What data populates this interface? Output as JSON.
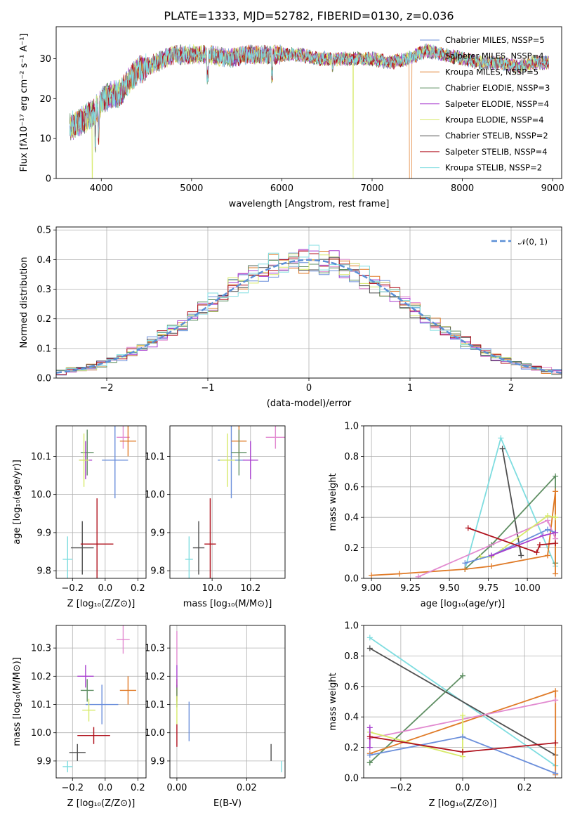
{
  "colors": {
    "Chabrier MILES": "#6b8fdb",
    "Salpeter MILES": "#e28ad0",
    "Kroupa MILES": "#e07b28",
    "Chabrier ELODIE": "#5f8f63",
    "Salpeter ELODIE": "#a83fcf",
    "Kroupa ELODIE": "#d7ea6a",
    "Chabrier STELIB": "#505050",
    "Salpeter STELIB": "#b0121d",
    "Kroupa STELIB": "#7fdde0"
  },
  "chart_data": [
    {
      "type": "line",
      "title": "PLATE=1333, MJD=52782, FIBERID=0130, z=0.036",
      "xlabel": "wavelength [Angstrom, rest frame]",
      "ylabel": "Flux [fλ10⁻¹⁷ erg cm⁻² s⁻¹ A⁻¹]",
      "xlim": [
        3500,
        9100
      ],
      "ylim": [
        0,
        38
      ],
      "xticks": [
        "4000",
        "5000",
        "6000",
        "7000",
        "8000",
        "9000"
      ],
      "yticks": [
        "0",
        "10",
        "20",
        "30"
      ],
      "legend_position": "top-right",
      "series": [
        {
          "name": "Chabrier MILES, NSSP=5",
          "color_key": "Chabrier MILES"
        },
        {
          "name": "Salpeter MILES, NSSP=4",
          "color_key": "Salpeter MILES"
        },
        {
          "name": "Kroupa MILES, NSSP=5",
          "color_key": "Kroupa MILES"
        },
        {
          "name": "Chabrier ELODIE, NSSP=3",
          "color_key": "Chabrier ELODIE"
        },
        {
          "name": "Salpeter ELODIE, NSSP=4",
          "color_key": "Salpeter ELODIE"
        },
        {
          "name": "Kroupa ELODIE, NSSP=4",
          "color_key": "Kroupa ELODIE"
        },
        {
          "name": "Chabrier STELIB, NSSP=2",
          "color_key": "Chabrier STELIB"
        },
        {
          "name": "Salpeter STELIB, NSSP=4",
          "color_key": "Salpeter STELIB"
        },
        {
          "name": "Kroupa STELIB, NSSP=2",
          "color_key": "Kroupa STELIB"
        }
      ],
      "continuum": {
        "x": [
          3650,
          3750,
          3900,
          4000,
          4100,
          4200,
          4300,
          4400,
          4600,
          4800,
          5000,
          5200,
          5400,
          5600,
          5800,
          6000,
          6200,
          6400,
          6600,
          6800,
          7000,
          7200,
          7400,
          7600,
          7800,
          8000,
          8200,
          8400,
          8600,
          8800,
          8950
        ],
        "y": [
          13,
          14,
          16,
          19,
          21,
          21,
          24,
          27,
          29,
          31,
          31,
          31,
          30,
          31,
          31,
          31,
          31,
          30,
          30,
          30,
          30,
          29,
          30,
          32,
          31,
          30,
          29,
          29,
          28,
          29,
          29
        ]
      }
    },
    {
      "type": "step",
      "xlabel": "(data-model)/error",
      "ylabel": "Normed distribution",
      "xlim": [
        -2.5,
        2.5
      ],
      "ylim": [
        0,
        0.51
      ],
      "xticks": [
        "−2",
        "−1",
        "0",
        "1",
        "2"
      ],
      "yticks": [
        "0.0",
        "0.1",
        "0.2",
        "0.3",
        "0.4",
        "0.5"
      ],
      "bin_width": 0.1,
      "legend_position": "top-right",
      "reference": {
        "name": "𝒩(0, 1)",
        "color": "#5b8fd6"
      }
    },
    {
      "type": "errorbar",
      "xlabel": "Z [log₁₀(Z/Z⊙)]",
      "ylabel": "age  [log₁₀(age/yr)]",
      "xlim": [
        -0.3,
        0.25
      ],
      "ylim": [
        9.78,
        10.18
      ],
      "xticks": [
        "−0.2",
        "0.0",
        "0.2"
      ],
      "xtick_values": [
        -0.2,
        0.0,
        0.2
      ],
      "yticks": [
        "9.8",
        "9.9",
        "10.0",
        "10.1"
      ],
      "ytick_values": [
        9.8,
        9.9,
        10.0,
        10.1
      ],
      "points": [
        {
          "k": "Chabrier MILES",
          "x": 0.06,
          "y": 10.09,
          "xe": 0.08,
          "ye": 0.1
        },
        {
          "k": "Salpeter MILES",
          "x": 0.11,
          "y": 10.15,
          "xe": 0.04,
          "ye": 0.03
        },
        {
          "k": "Kroupa MILES",
          "x": 0.14,
          "y": 10.14,
          "xe": 0.05,
          "ye": 0.04
        },
        {
          "k": "Chabrier ELODIE",
          "x": -0.11,
          "y": 10.11,
          "xe": 0.04,
          "ye": 0.06
        },
        {
          "k": "Salpeter ELODIE",
          "x": -0.12,
          "y": 10.09,
          "xe": 0.04,
          "ye": 0.05
        },
        {
          "k": "Kroupa ELODIE",
          "x": -0.13,
          "y": 10.09,
          "xe": 0.03,
          "ye": 0.07
        },
        {
          "k": "Chabrier STELIB",
          "x": -0.14,
          "y": 9.86,
          "xe": 0.07,
          "ye": 0.07
        },
        {
          "k": "Salpeter STELIB",
          "x": -0.05,
          "y": 9.87,
          "xe": 0.1,
          "ye": 0.12
        },
        {
          "k": "Kroupa STELIB",
          "x": -0.23,
          "y": 9.83,
          "xe": 0.03,
          "ye": 0.06
        }
      ]
    },
    {
      "type": "errorbar",
      "xlabel": "mass [log₁₀(M/M⊙)]",
      "ylabel": "",
      "xlim": [
        9.78,
        10.38
      ],
      "ylim": [
        9.78,
        10.18
      ],
      "xticks": [
        "10.0",
        "10.2"
      ],
      "xtick_values": [
        10.0,
        10.2
      ],
      "yticks": [
        "9.8",
        "9.9",
        "10.0",
        "10.1"
      ],
      "ytick_values": [
        9.8,
        9.9,
        10.0,
        10.1
      ],
      "points": [
        {
          "k": "Chabrier MILES",
          "x": 10.1,
          "y": 10.09,
          "xe": 0.07,
          "ye": 0.1
        },
        {
          "k": "Salpeter MILES",
          "x": 10.33,
          "y": 10.15,
          "xe": 0.05,
          "ye": 0.03
        },
        {
          "k": "Kroupa MILES",
          "x": 10.14,
          "y": 10.14,
          "xe": 0.04,
          "ye": 0.04
        },
        {
          "k": "Chabrier ELODIE",
          "x": 10.14,
          "y": 10.11,
          "xe": 0.04,
          "ye": 0.06
        },
        {
          "k": "Salpeter ELODIE",
          "x": 10.2,
          "y": 10.09,
          "xe": 0.04,
          "ye": 0.05
        },
        {
          "k": "Kroupa ELODIE",
          "x": 10.08,
          "y": 10.09,
          "xe": 0.04,
          "ye": 0.07
        },
        {
          "k": "Chabrier STELIB",
          "x": 9.93,
          "y": 9.86,
          "xe": 0.03,
          "ye": 0.07
        },
        {
          "k": "Salpeter STELIB",
          "x": 9.99,
          "y": 9.87,
          "xe": 0.03,
          "ye": 0.12
        },
        {
          "k": "Kroupa STELIB",
          "x": 9.88,
          "y": 9.83,
          "xe": 0.02,
          "ye": 0.06
        }
      ]
    },
    {
      "type": "line",
      "xlabel": "age  [log₁₀(age/yr)]",
      "ylabel": "mass weight",
      "xlim": [
        8.95,
        10.22
      ],
      "ylim": [
        0,
        1.0
      ],
      "xticks": [
        "9.00",
        "9.25",
        "9.50",
        "9.75",
        "10.00"
      ],
      "xtick_values": [
        9.0,
        9.25,
        9.5,
        9.75,
        10.0
      ],
      "yticks": [
        "0.0",
        "0.2",
        "0.4",
        "0.6",
        "0.8",
        "1.0"
      ],
      "ytick_values": [
        0,
        0.2,
        0.4,
        0.6,
        0.8,
        1.0
      ],
      "series": [
        {
          "k": "Kroupa STELIB",
          "x": [
            9.6,
            9.83,
            10.18
          ],
          "y": [
            0.06,
            0.92,
            0.08
          ]
        },
        {
          "k": "Chabrier STELIB",
          "x": [
            9.84,
            9.96
          ],
          "y": [
            0.85,
            0.15
          ]
        },
        {
          "k": "Chabrier ELODIE",
          "x": [
            9.6,
            9.77,
            10.18,
            10.18
          ],
          "y": [
            0.06,
            0.22,
            0.67,
            0.1
          ]
        },
        {
          "k": "Kroupa MILES",
          "x": [
            9.0,
            9.18,
            9.6,
            9.77,
            10.13,
            10.18,
            10.18
          ],
          "y": [
            0.02,
            0.03,
            0.06,
            0.08,
            0.15,
            0.57,
            0.03
          ]
        },
        {
          "k": "Salpeter MILES",
          "x": [
            9.3,
            10.13,
            10.18
          ],
          "y": [
            0.01,
            0.38,
            0.26
          ]
        },
        {
          "k": "Kroupa ELODIE",
          "x": [
            9.7,
            9.77,
            10.13,
            10.18
          ],
          "y": [
            0.14,
            0.14,
            0.41,
            0.4
          ]
        },
        {
          "k": "Chabrier MILES",
          "x": [
            9.6,
            9.77,
            10.13,
            10.18
          ],
          "y": [
            0.1,
            0.15,
            0.32,
            0.3
          ]
        },
        {
          "k": "Salpeter ELODIE",
          "x": [
            9.77,
            10.1,
            10.18
          ],
          "y": [
            0.15,
            0.28,
            0.3
          ]
        },
        {
          "k": "Salpeter STELIB",
          "x": [
            9.62,
            10.06,
            10.08,
            10.18
          ],
          "y": [
            0.33,
            0.17,
            0.22,
            0.23
          ]
        }
      ]
    },
    {
      "type": "errorbar",
      "xlabel": "Z [log₁₀(Z/Z⊙)]",
      "ylabel": "mass [log₁₀(M/M⊙)]",
      "xlim": [
        -0.3,
        0.25
      ],
      "ylim": [
        9.84,
        10.38
      ],
      "xticks": [
        "−0.2",
        "0.0",
        "0.2"
      ],
      "xtick_values": [
        -0.2,
        0.0,
        0.2
      ],
      "yticks": [
        "9.9",
        "10.0",
        "10.1",
        "10.2",
        "10.3"
      ],
      "ytick_values": [
        9.9,
        10.0,
        10.1,
        10.2,
        10.3
      ],
      "points": [
        {
          "k": "Chabrier MILES",
          "x": -0.02,
          "y": 10.1,
          "xe": 0.1,
          "ye": 0.07
        },
        {
          "k": "Salpeter MILES",
          "x": 0.11,
          "y": 10.33,
          "xe": 0.04,
          "ye": 0.05
        },
        {
          "k": "Kroupa MILES",
          "x": 0.14,
          "y": 10.15,
          "xe": 0.05,
          "ye": 0.05
        },
        {
          "k": "Chabrier ELODIE",
          "x": -0.11,
          "y": 10.15,
          "xe": 0.04,
          "ye": 0.04
        },
        {
          "k": "Salpeter ELODIE",
          "x": -0.12,
          "y": 10.2,
          "xe": 0.05,
          "ye": 0.04
        },
        {
          "k": "Kroupa ELODIE",
          "x": -0.1,
          "y": 10.08,
          "xe": 0.04,
          "ye": 0.04
        },
        {
          "k": "Chabrier STELIB",
          "x": -0.17,
          "y": 9.93,
          "xe": 0.05,
          "ye": 0.03
        },
        {
          "k": "Salpeter STELIB",
          "x": -0.07,
          "y": 9.99,
          "xe": 0.1,
          "ye": 0.03
        },
        {
          "k": "Kroupa STELIB",
          "x": -0.23,
          "y": 9.88,
          "xe": 0.03,
          "ye": 0.02
        }
      ]
    },
    {
      "type": "errorbar",
      "xlabel": "E(B-V)",
      "ylabel": "",
      "xlim": [
        -0.002,
        0.031
      ],
      "ylim": [
        9.84,
        10.38
      ],
      "xticks": [
        "0.00",
        "0.02"
      ],
      "xtick_values": [
        0.0,
        0.02
      ],
      "yticks": [
        "9.9",
        "10.0",
        "10.1",
        "10.2",
        "10.3"
      ],
      "ytick_values": [
        9.9,
        10.0,
        10.1,
        10.2,
        10.3
      ],
      "points": [
        {
          "k": "Chabrier MILES",
          "x": 0.0035,
          "y": 10.04,
          "xe": 0,
          "ye": 0.07
        },
        {
          "k": "Salpeter MILES",
          "x": 0.0,
          "y": 10.3,
          "xe": 0,
          "ye": 0.06
        },
        {
          "k": "Kroupa MILES",
          "x": 0.0,
          "y": 10.15,
          "xe": 0,
          "ye": 0.04
        },
        {
          "k": "Chabrier ELODIE",
          "x": 0.0,
          "y": 10.13,
          "xe": 0,
          "ye": 0.04
        },
        {
          "k": "Salpeter ELODIE",
          "x": 0.0,
          "y": 10.2,
          "xe": 0,
          "ye": 0.04
        },
        {
          "k": "Kroupa ELODIE",
          "x": 0.0,
          "y": 10.08,
          "xe": 0,
          "ye": 0.05
        },
        {
          "k": "Chabrier STELIB",
          "x": 0.027,
          "y": 9.93,
          "xe": 0,
          "ye": 0.03
        },
        {
          "k": "Salpeter STELIB",
          "x": 0.0,
          "y": 9.99,
          "xe": 0,
          "ye": 0.04
        },
        {
          "k": "Kroupa STELIB",
          "x": 0.03,
          "y": 9.88,
          "xe": 0,
          "ye": 0.02
        }
      ]
    },
    {
      "type": "line",
      "xlabel": "Z [log₁₀(Z/Z⊙)]",
      "ylabel": "mass weight",
      "xlim": [
        -0.32,
        0.32
      ],
      "ylim": [
        0,
        1.0
      ],
      "xticks": [
        "−0.2",
        "0.0",
        "0.2"
      ],
      "xtick_values": [
        -0.2,
        0.0,
        0.2
      ],
      "yticks": [
        "0.0",
        "0.2",
        "0.4",
        "0.6",
        "0.8",
        "1.0"
      ],
      "ytick_values": [
        0,
        0.2,
        0.4,
        0.6,
        0.8,
        1.0
      ],
      "series": [
        {
          "k": "Kroupa STELIB",
          "x": [
            -0.3,
            0.3
          ],
          "y": [
            0.92,
            0.08
          ]
        },
        {
          "k": "Chabrier STELIB",
          "x": [
            -0.3,
            0.3
          ],
          "y": [
            0.85,
            0.15
          ]
        },
        {
          "k": "Chabrier ELODIE",
          "x": [
            -0.3,
            0.0,
            0.0,
            -0.3
          ],
          "y": [
            0.1,
            0.67,
            0.67,
            0.1
          ]
        },
        {
          "k": "Kroupa MILES",
          "x": [
            -0.3,
            0.3,
            0.3
          ],
          "y": [
            0.16,
            0.57,
            0.02
          ]
        },
        {
          "k": "Salpeter MILES",
          "x": [
            -0.3,
            0.3
          ],
          "y": [
            0.26,
            0.51
          ]
        },
        {
          "k": "Kroupa ELODIE",
          "x": [
            -0.3,
            0.0,
            0.0
          ],
          "y": [
            0.3,
            0.14,
            0.41
          ]
        },
        {
          "k": "Chabrier MILES",
          "x": [
            -0.3,
            0.0,
            0.3
          ],
          "y": [
            0.15,
            0.27,
            0.03
          ]
        },
        {
          "k": "Salpeter ELODIE",
          "x": [
            -0.3,
            -0.3
          ],
          "y": [
            0.33,
            0.2
          ]
        },
        {
          "k": "Salpeter STELIB",
          "x": [
            -0.3,
            0.0,
            0.3
          ],
          "y": [
            0.27,
            0.17,
            0.23
          ]
        }
      ]
    }
  ]
}
